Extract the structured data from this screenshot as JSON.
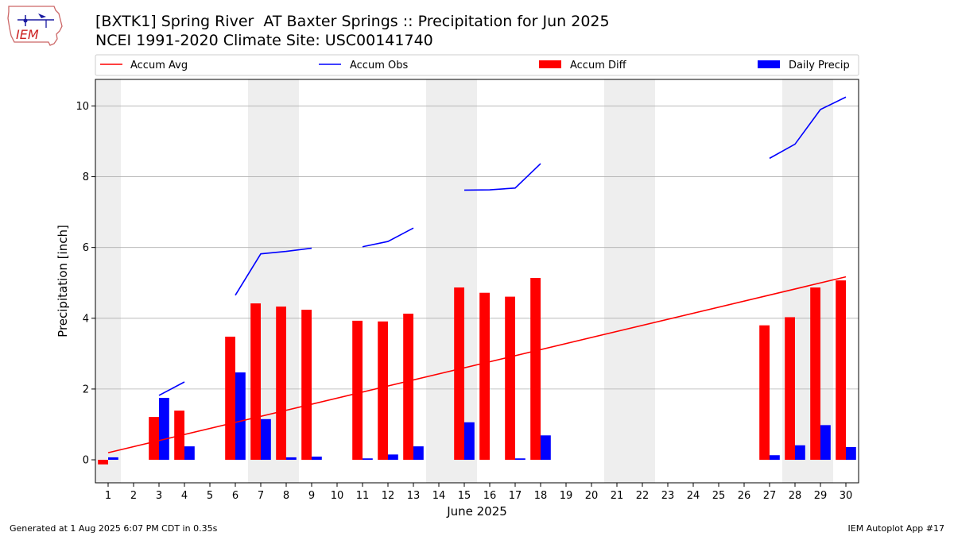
{
  "header": {
    "title_line1": "[BXTK1] Spring River  AT Baxter Springs :: Precipitation for Jun 2025",
    "title_line2": "NCEI 1991-2020 Climate Site: USC00141740",
    "logo_text": "IEM"
  },
  "footer": {
    "generated": "Generated at 1 Aug 2025 6:07 PM CDT in 0.35s",
    "app": "IEM Autoplot App #17"
  },
  "colors": {
    "avg": "#ff0000",
    "obs": "#0000ff",
    "diff": "#ff0000",
    "daily": "#0000ff",
    "weekend": "#eeeeee",
    "grid": "#b0b0b0"
  },
  "chart_data": {
    "type": "bar",
    "xlabel": "June 2025",
    "ylabel": "Precipitation [inch]",
    "xlim": [
      0.5,
      30.5
    ],
    "ylim": [
      -0.65,
      10.75
    ],
    "yticks": [
      0,
      2,
      4,
      6,
      8,
      10
    ],
    "grid": "horizontal",
    "legend_placement": "top",
    "legend": {
      "avg": "Accum Avg",
      "obs": "Accum Obs",
      "diff": "Accum Diff",
      "daily": "Daily Precip"
    },
    "days": [
      1,
      2,
      3,
      4,
      5,
      6,
      7,
      8,
      9,
      10,
      11,
      12,
      13,
      14,
      15,
      16,
      17,
      18,
      19,
      20,
      21,
      22,
      23,
      24,
      25,
      26,
      27,
      28,
      29,
      30
    ],
    "weekend_shading": [
      [
        0.5,
        1.5
      ],
      [
        6.5,
        8.5
      ],
      [
        13.5,
        15.5
      ],
      [
        20.5,
        22.5
      ],
      [
        27.5,
        29.5
      ]
    ],
    "series": [
      {
        "name": "Accum Avg",
        "kind": "line",
        "x": [
          1,
          30
        ],
        "y": [
          0.2,
          5.17
        ]
      },
      {
        "name": "Accum Obs",
        "kind": "line",
        "segments": [
          {
            "x": [
              3,
              4
            ],
            "y": [
              1.82,
              2.2
            ]
          },
          {
            "x": [
              6,
              7,
              8,
              9
            ],
            "y": [
              4.65,
              5.82,
              5.89,
              5.98
            ]
          },
          {
            "x": [
              11,
              12,
              13
            ],
            "y": [
              6.02,
              6.17,
              6.55
            ]
          },
          {
            "x": [
              15,
              16,
              17,
              18
            ],
            "y": [
              7.62,
              7.63,
              7.68,
              8.37
            ]
          },
          {
            "x": [
              27,
              28,
              29,
              30
            ],
            "y": [
              8.52,
              8.92,
              9.9,
              10.25
            ]
          }
        ]
      },
      {
        "name": "Accum Diff",
        "kind": "bar",
        "x": [
          1,
          3,
          4,
          6,
          7,
          8,
          9,
          11,
          12,
          13,
          15,
          16,
          17,
          18,
          27,
          28,
          29,
          30
        ],
        "y": [
          -0.13,
          1.21,
          1.39,
          3.48,
          4.42,
          4.33,
          4.24,
          3.93,
          3.91,
          4.13,
          4.87,
          4.72,
          4.61,
          5.14,
          3.8,
          4.03,
          4.87,
          5.07
        ]
      },
      {
        "name": "Daily Precip",
        "kind": "bar",
        "x": [
          1,
          3,
          4,
          6,
          7,
          8,
          9,
          11,
          12,
          13,
          15,
          17,
          18,
          27,
          28,
          29,
          30
        ],
        "y": [
          0.07,
          1.75,
          0.38,
          2.47,
          1.15,
          0.07,
          0.09,
          0.04,
          0.15,
          0.38,
          1.06,
          0.04,
          0.69,
          0.13,
          0.41,
          0.98,
          0.36
        ]
      }
    ]
  }
}
